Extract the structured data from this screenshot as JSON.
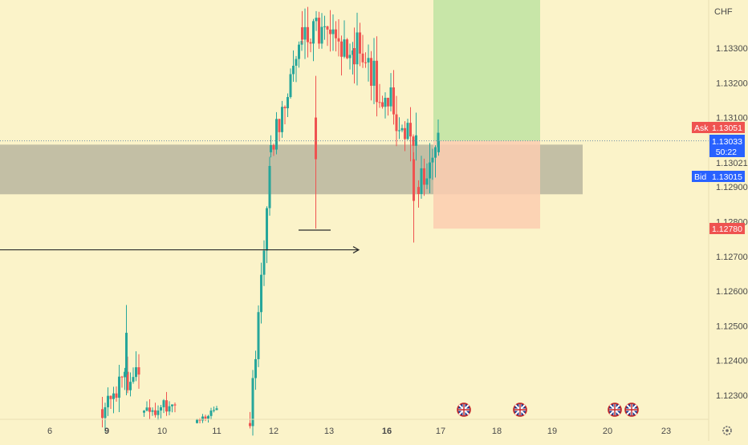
{
  "currency_label": "CHF",
  "price_scale": {
    "tick_labels": [
      "1.13300",
      "1.13200",
      "1.13100",
      "1.12900",
      "1.12800",
      "1.12700",
      "1.12600",
      "1.12500",
      "1.12400",
      "1.12300"
    ],
    "tick_values": [
      1.133,
      1.132,
      1.131,
      1.129,
      1.128,
      1.127,
      1.126,
      1.125,
      1.124,
      1.123
    ]
  },
  "time_scale": {
    "labels": [
      "6",
      "9",
      "10",
      "11",
      "12",
      "13",
      "16",
      "17",
      "18",
      "19",
      "20",
      "23"
    ],
    "bold_labels": [
      "9",
      "16"
    ]
  },
  "badges": {
    "ask": {
      "label": "Ask",
      "value": "1.13051",
      "color": "#ef5350",
      "level": 1.13051
    },
    "last": {
      "value": "1.13033",
      "countdown": "50:22",
      "color": "#2962ff",
      "level": 1.13033
    },
    "hidden": {
      "value": "1.13021"
    },
    "bid": {
      "label": "Bid",
      "value": "1.13015",
      "color": "#2962ff",
      "level": 1.13015
    },
    "stop": {
      "value": "1.12780",
      "color": "#ef5350",
      "level": 1.1278
    }
  },
  "event_icons": [
    "uk-flag-icon",
    "uk-flag-icon",
    "uk-flag-icon",
    "uk-flag-icon"
  ],
  "position": {
    "type": "long",
    "entry": 1.13033,
    "stop": 1.1278,
    "target_color": "#c8e6a8",
    "stop_color": "#fbcdb0"
  },
  "support_zone": {
    "upper": 1.13022,
    "lower": 1.12879,
    "color": "#b8b59f"
  },
  "arrow_level": 1.12719,
  "colors": {
    "up": "#26a69a",
    "down": "#ef5350",
    "background": "#fbf3c9"
  }
}
